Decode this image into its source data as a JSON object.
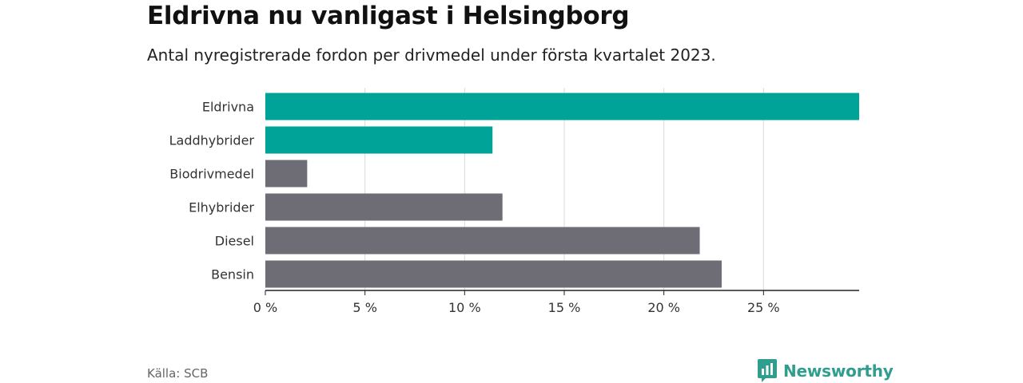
{
  "title": "Eldrivna nu vanligast i Helsingborg",
  "subtitle": "Antal nyregistrerade fordon per drivmedel under första kvartalet 2023.",
  "source": "Källa: SCB",
  "brand": {
    "name": "Newsworthy",
    "icon": "newsworthy-logo-icon"
  },
  "colors": {
    "highlight": "#00a398",
    "default": "#6e6d75",
    "grid": "#d9d9d9",
    "axis": "#222222"
  },
  "chart_data": {
    "type": "bar",
    "orientation": "horizontal",
    "categories": [
      "Eldrivna",
      "Laddhybrider",
      "Biodrivmedel",
      "Elhybrider",
      "Diesel",
      "Bensin"
    ],
    "values": [
      29.8,
      11.4,
      2.1,
      11.9,
      21.8,
      22.9
    ],
    "highlighted": [
      true,
      true,
      false,
      false,
      false,
      false
    ],
    "xlim": [
      0,
      29.8
    ],
    "xticks": [
      0,
      5,
      10,
      15,
      20,
      25
    ],
    "tick_labels": [
      "0 %",
      "5 %",
      "10 %",
      "15 %",
      "20 %",
      "25 %"
    ],
    "grid": true
  }
}
